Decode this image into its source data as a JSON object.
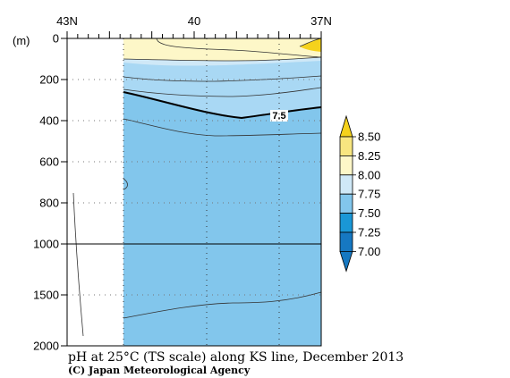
{
  "chart_data": {
    "type": "contour-section",
    "title": "pH at 25°C (TS scale) along KS line, December 2013",
    "credit": "(C) Japan Meteorological Agency",
    "x_axis": {
      "ticks": [
        {
          "value": 43,
          "label": "43N"
        },
        {
          "value": 40,
          "label": "40"
        },
        {
          "value": 37,
          "label": "37N"
        }
      ],
      "range": [
        43,
        37
      ]
    },
    "y_axis": {
      "unit_label": "(m)",
      "upper_ticks": [
        0,
        200,
        400,
        600,
        800,
        1000
      ],
      "lower_ticks": [
        1500,
        2000
      ],
      "range": [
        0,
        2000
      ]
    },
    "contour_label": "7.5",
    "legend": {
      "levels": [
        "8.50",
        "8.25",
        "8.00",
        "7.75",
        "7.50",
        "7.25",
        "7.00"
      ],
      "colors": [
        "#f5d21c",
        "#f8e680",
        "#fdf7c8",
        "#cfe8f7",
        "#82c6ec",
        "#1a97d6",
        "#1678c2"
      ]
    },
    "fill_colors": {
      "above_8": "#fdf7c8",
      "band_775_8": "#cfe8f7",
      "band_75_775": "#a9d8f4",
      "below_75": "#82c6ec",
      "no_data": "#ffffff"
    }
  }
}
